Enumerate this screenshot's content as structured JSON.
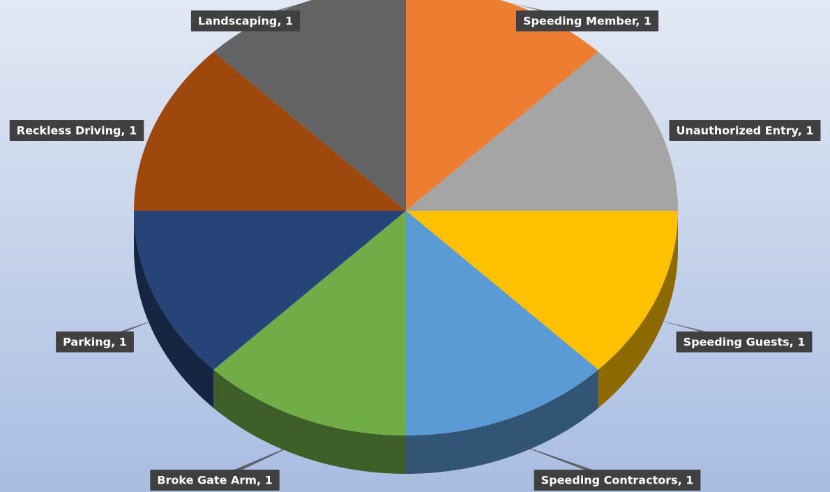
{
  "chart_data": {
    "type": "pie",
    "categories": [
      "Speeding Member",
      "Unauthorized Entry",
      "Speeding Guests",
      "Speeding Contractors",
      "Broke Gate Arm",
      "Parking",
      "Reckless Driving",
      "Landscaping"
    ],
    "values": [
      1,
      1,
      1,
      1,
      1,
      1,
      1,
      1
    ],
    "value_labels": [
      "Speeding Member, 1",
      "Unauthorized Entry, 1",
      "Speeding Guests, 1",
      "Speeding Contractors, 1",
      "Broke Gate Arm, 1",
      "Parking, 1",
      "Reckless Driving, 1",
      "Landscaping, 1"
    ],
    "colors": [
      "#ed7d31",
      "#a5a5a5",
      "#ffc000",
      "#5b9bd5",
      "#70ad47",
      "#264478",
      "#9e480e",
      "#636363"
    ]
  }
}
